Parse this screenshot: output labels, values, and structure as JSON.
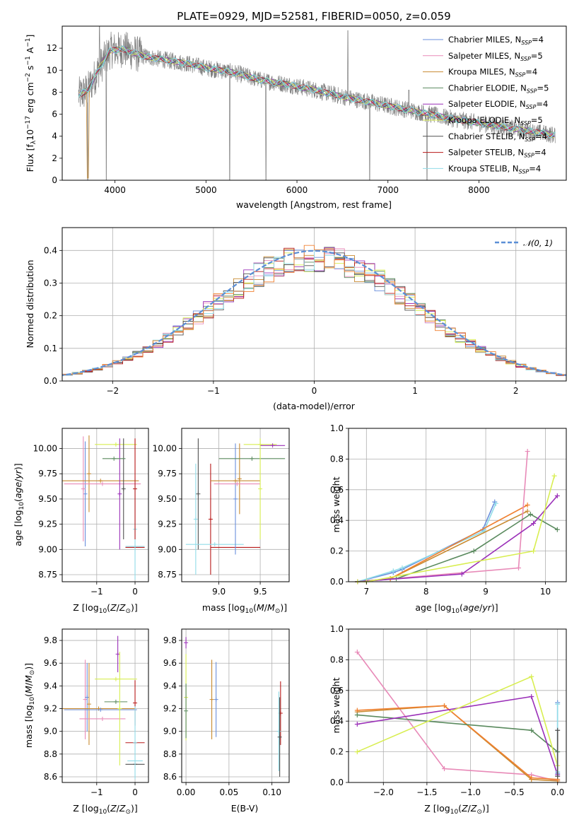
{
  "chart_data": [
    {
      "type": "line",
      "title": "PLATE=0929, MJD=52581, FIBERID=0050, z=0.059",
      "xlabel": "wavelength [Angstrom, rest frame]",
      "ylabel": "Flux [f_λ 10^-17 erg cm^-2 s^-1 A^-1]",
      "xlim": [
        3420,
        8960
      ],
      "ylim": [
        0,
        14
      ],
      "xticks": [
        4000,
        5000,
        6000,
        7000,
        8000
      ],
      "yticks": [
        0,
        2,
        4,
        6,
        8,
        10,
        12
      ],
      "grid": false,
      "legend": "top-right",
      "observed_color": "#808080",
      "model_color": "#7fd4dc",
      "observed_anchors": [
        [
          3600,
          7.7
        ],
        [
          3700,
          8.2
        ],
        [
          3850,
          10.5
        ],
        [
          3950,
          11.8
        ],
        [
          4100,
          11.9
        ],
        [
          4300,
          11.3
        ],
        [
          4500,
          11.0
        ],
        [
          4800,
          10.6
        ],
        [
          5000,
          10.2
        ],
        [
          5300,
          9.8
        ],
        [
          5600,
          9.1
        ],
        [
          5900,
          8.7
        ],
        [
          6200,
          8.2
        ],
        [
          6500,
          7.6
        ],
        [
          6800,
          7.1
        ],
        [
          7100,
          6.6
        ],
        [
          7400,
          6.1
        ],
        [
          7700,
          5.6
        ],
        [
          8000,
          5.2
        ],
        [
          8300,
          4.8
        ],
        [
          8600,
          4.4
        ],
        [
          8840,
          4.1
        ]
      ],
      "dips": [
        [
          3700,
          0
        ],
        [
          3905,
          0
        ],
        [
          5260,
          0
        ],
        [
          5660,
          0
        ],
        [
          6800,
          0
        ],
        [
          7430,
          0
        ]
      ],
      "spikes": [
        [
          3830,
          14
        ],
        [
          6560,
          13.6
        ],
        [
          7230,
          8.2
        ]
      ],
      "series": [
        {
          "name": "Chabrier MILES, N_SSP=4",
          "color": "#6a8fdc"
        },
        {
          "name": "Salpeter MILES, N_SSP=5",
          "color": "#e88ab8"
        },
        {
          "name": "Kroupa MILES, N_SSP=4",
          "color": "#c88a30"
        },
        {
          "name": "Chabrier ELODIE, N_SSP=5",
          "color": "#5a8a5e"
        },
        {
          "name": "Salpeter ELODIE, N_SSP=4",
          "color": "#9a2fb8"
        },
        {
          "name": "Kroupa ELODIE, N_SSP=5",
          "color": "#d8ee50"
        },
        {
          "name": "Chabrier STELIB, N_SSP=4",
          "color": "#505050"
        },
        {
          "name": "Salpeter STELIB, N_SSP=4",
          "color": "#b81818"
        },
        {
          "name": "Kroupa STELIB, N_SSP=4",
          "color": "#90dce8"
        }
      ]
    },
    {
      "type": "line",
      "xlabel": "(data-model)/error",
      "ylabel": "Normed distribution",
      "xlim": [
        -2.5,
        2.5
      ],
      "ylim": [
        0,
        0.47
      ],
      "xticks": [
        -2,
        -1,
        0,
        1,
        2
      ],
      "yticks": [
        0.0,
        0.1,
        0.2,
        0.3,
        0.4
      ],
      "grid": true,
      "legend": "top-right",
      "bin_width": 0.1,
      "reference": {
        "name": "𝒩(0, 1)",
        "color": "#5b8fd6"
      },
      "hist_colors": [
        "#6a8fdc",
        "#e88ab8",
        "#c88a30",
        "#5a8a5e",
        "#9a2fb8",
        "#d8ee50",
        "#505050",
        "#b81818",
        "#90dce8",
        "#f08030"
      ]
    },
    {
      "type": "scatter",
      "xlabel": "Z [log10(Z/Z⊙)]",
      "ylabel": "age [log10(age/yr)]",
      "xlim": [
        -1.9,
        0.35
      ],
      "ylim": [
        8.68,
        10.2
      ],
      "xticks": [
        -1,
        0
      ],
      "yticks": [
        8.75,
        9.0,
        9.25,
        9.5,
        9.75,
        10.0
      ],
      "grid": true,
      "points": [
        {
          "x": -1.3,
          "xerr": 0,
          "y": 9.55,
          "yerr": 0.52,
          "color": "#6a8fdc"
        },
        {
          "x": -1.35,
          "xerr": 0,
          "y": 9.6,
          "yerr": 0.52,
          "color": "#e88ab8"
        },
        {
          "x": -1.2,
          "xerr": 0,
          "y": 9.75,
          "yerr": 0.38,
          "color": "#c88a30"
        },
        {
          "x": -0.9,
          "xerr": 1.0,
          "y": 9.68,
          "yerr": 0,
          "color": "#c88a30"
        },
        {
          "x": -0.85,
          "xerr": 1.0,
          "y": 9.65,
          "yerr": 0,
          "color": "#e88ab8"
        },
        {
          "x": -0.5,
          "xerr": 0.55,
          "y": 10.04,
          "yerr": 0,
          "color": "#d8ee50"
        },
        {
          "x": -0.4,
          "xerr": 0,
          "y": 9.55,
          "yerr": 0.55,
          "color": "#9a2fb8"
        },
        {
          "x": -0.3,
          "xerr": 0,
          "y": 9.6,
          "yerr": 0.5,
          "color": "#505050"
        },
        {
          "x": -0.55,
          "xerr": 0.3,
          "y": 9.9,
          "yerr": 0,
          "color": "#5a8a5e"
        },
        {
          "x": 0.0,
          "xerr": 0.25,
          "y": 9.03,
          "yerr": 0,
          "color": "#90dce8"
        },
        {
          "x": 0.0,
          "xerr": 0.25,
          "y": 9.02,
          "yerr": 0,
          "color": "#b81818"
        },
        {
          "x": 0.0,
          "xerr": 0,
          "y": 9.2,
          "yerr": 0.5,
          "color": "#90dce8"
        },
        {
          "x": 0.0,
          "xerr": 0,
          "y": 9.6,
          "yerr": 0.5,
          "color": "#b81818"
        }
      ]
    },
    {
      "type": "scatter",
      "xlabel": "mass [log10(M/M⊙)]",
      "ylabel": "",
      "xlim": [
        8.55,
        9.85
      ],
      "ylim": [
        8.68,
        10.2
      ],
      "xticks": [
        9.0,
        9.5
      ],
      "yticks": [
        8.75,
        9.0,
        9.25,
        9.5,
        9.75,
        10.0
      ],
      "grid": true,
      "points": [
        {
          "x": 8.75,
          "xerr": 0,
          "y": 9.55,
          "yerr": 0.55,
          "color": "#505050"
        },
        {
          "x": 8.72,
          "xerr": 0,
          "y": 9.3,
          "yerr": 0.55,
          "color": "#90dce8"
        },
        {
          "x": 8.9,
          "xerr": 0,
          "y": 9.3,
          "yerr": 0.55,
          "color": "#b81818"
        },
        {
          "x": 8.95,
          "xerr": 0.35,
          "y": 9.05,
          "yerr": 0,
          "color": "#90dce8"
        },
        {
          "x": 9.2,
          "xerr": 0.3,
          "y": 9.02,
          "yerr": 0,
          "color": "#b81818"
        },
        {
          "x": 9.2,
          "xerr": 0,
          "y": 9.5,
          "yerr": 0.55,
          "color": "#6a8fdc"
        },
        {
          "x": 9.25,
          "xerr": 0,
          "y": 9.7,
          "yerr": 0.35,
          "color": "#c88a30"
        },
        {
          "x": 9.2,
          "xerr": 0.3,
          "y": 9.68,
          "yerr": 0,
          "color": "#c88a30"
        },
        {
          "x": 9.22,
          "xerr": 0.28,
          "y": 9.65,
          "yerr": 0,
          "color": "#e88ab8"
        },
        {
          "x": 9.5,
          "xerr": 0.2,
          "y": 10.04,
          "yerr": 0,
          "color": "#d8ee50"
        },
        {
          "x": 9.4,
          "xerr": 0.4,
          "y": 9.9,
          "yerr": 0,
          "color": "#5a8a5e"
        },
        {
          "x": 9.65,
          "xerr": 0.15,
          "y": 10.03,
          "yerr": 0,
          "color": "#9a2fb8"
        },
        {
          "x": 9.5,
          "xerr": 0,
          "y": 9.6,
          "yerr": 0.5,
          "color": "#d8ee50"
        }
      ]
    },
    {
      "type": "line",
      "xlabel": "age [log10(age/yr)]",
      "ylabel": "mass weight",
      "xlim": [
        6.7,
        10.35
      ],
      "ylim": [
        0,
        1
      ],
      "xticks": [
        7,
        8,
        9,
        10
      ],
      "yticks": [
        0.0,
        0.2,
        0.4,
        0.6,
        0.8,
        1.0
      ],
      "grid": true,
      "series": [
        {
          "color": "#6a8fdc",
          "x": [
            6.85,
            7.45,
            7.6,
            8.95,
            9.15
          ],
          "y": [
            0.0,
            0.06,
            0.08,
            0.34,
            0.52
          ]
        },
        {
          "color": "#90dce8",
          "x": [
            6.85,
            7.45,
            7.6,
            8.97,
            9.17
          ],
          "y": [
            0.0,
            0.07,
            0.09,
            0.33,
            0.51
          ]
        },
        {
          "color": "#c88a30",
          "x": [
            6.85,
            7.4,
            9.7
          ],
          "y": [
            0.0,
            0.02,
            0.46
          ]
        },
        {
          "color": "#f08030",
          "x": [
            6.85,
            7.4,
            9.7
          ],
          "y": [
            0.0,
            0.02,
            0.5
          ]
        },
        {
          "color": "#e88ab8",
          "x": [
            6.85,
            9.55,
            9.7
          ],
          "y": [
            0.0,
            0.09,
            0.85
          ]
        },
        {
          "color": "#5a8a5e",
          "x": [
            6.85,
            7.5,
            8.8,
            9.75,
            10.2
          ],
          "y": [
            0.0,
            0.02,
            0.2,
            0.44,
            0.34
          ]
        },
        {
          "color": "#9a2fb8",
          "x": [
            6.85,
            8.6,
            9.8,
            10.2
          ],
          "y": [
            0.0,
            0.05,
            0.38,
            0.56
          ]
        },
        {
          "color": "#d8ee50",
          "x": [
            6.85,
            7.0,
            9.8,
            10.15
          ],
          "y": [
            0.0,
            0.0,
            0.2,
            0.69
          ]
        }
      ]
    },
    {
      "type": "scatter",
      "xlabel": "Z [log10(Z/Z⊙)]",
      "ylabel": "mass [log10(M/M⊙)]",
      "xlim": [
        -1.9,
        0.35
      ],
      "ylim": [
        8.55,
        9.9
      ],
      "xticks": [
        -1,
        0
      ],
      "yticks": [
        8.6,
        8.8,
        9.0,
        9.2,
        9.4,
        9.6,
        9.8
      ],
      "grid": true,
      "points": [
        {
          "x": -1.3,
          "xerr": 0,
          "y": 9.28,
          "yerr": 0.35,
          "color": "#e88ab8"
        },
        {
          "x": -1.25,
          "xerr": 0,
          "y": 9.3,
          "yerr": 0.3,
          "color": "#6a8fdc"
        },
        {
          "x": -1.2,
          "xerr": 0,
          "y": 9.24,
          "yerr": 0.36,
          "color": "#c88a30"
        },
        {
          "x": -0.95,
          "xerr": 0.95,
          "y": 9.2,
          "yerr": 0,
          "color": "#c88a30"
        },
        {
          "x": -0.9,
          "xerr": 0.95,
          "y": 9.19,
          "yerr": 0,
          "color": "#6a8fdc"
        },
        {
          "x": -0.85,
          "xerr": 0.6,
          "y": 9.11,
          "yerr": 0,
          "color": "#e88ab8"
        },
        {
          "x": -0.5,
          "xerr": 0.3,
          "y": 9.26,
          "yerr": 0,
          "color": "#5a8a5e"
        },
        {
          "x": -0.5,
          "xerr": 0.55,
          "y": 9.46,
          "yerr": 0,
          "color": "#d8ee50"
        },
        {
          "x": -0.45,
          "xerr": 0,
          "y": 9.68,
          "yerr": 0.16,
          "color": "#9a2fb8"
        },
        {
          "x": -0.4,
          "xerr": 0,
          "y": 9.2,
          "yerr": 0.5,
          "color": "#d8ee50"
        },
        {
          "x": 0.0,
          "xerr": 0.25,
          "y": 8.9,
          "yerr": 0,
          "color": "#b81818"
        },
        {
          "x": 0.0,
          "xerr": 0.2,
          "y": 8.74,
          "yerr": 0,
          "color": "#90dce8"
        },
        {
          "x": 0.0,
          "xerr": 0.25,
          "y": 8.71,
          "yerr": 0,
          "color": "#505050"
        },
        {
          "x": 0.0,
          "xerr": 0,
          "y": 9.25,
          "yerr": 0.2,
          "color": "#b81818"
        },
        {
          "x": 0.0,
          "xerr": 0,
          "y": 8.9,
          "yerr": 0.32,
          "color": "#90dce8"
        }
      ]
    },
    {
      "type": "scatter",
      "xlabel": "E(B-V)",
      "ylabel": "",
      "xlim": [
        -0.005,
        0.12
      ],
      "ylim": [
        8.55,
        9.9
      ],
      "xticks": [
        0.0,
        0.05,
        0.1
      ],
      "xticklabels": [
        "0.00",
        "0.05",
        "0.10"
      ],
      "yticks": [
        8.6,
        8.8,
        9.0,
        9.2,
        9.4,
        9.6,
        9.8
      ],
      "grid": true,
      "points": [
        {
          "x": 0.0,
          "xerr": 0,
          "y": 9.78,
          "yerr": 0.05,
          "color": "#9a2fb8"
        },
        {
          "x": 0.0,
          "xerr": 0,
          "y": 9.3,
          "yerr": 0.38,
          "color": "#d8ee50"
        },
        {
          "x": 0.0,
          "xerr": 0,
          "y": 9.18,
          "yerr": 0.24,
          "color": "#5a8a5e"
        },
        {
          "x": 0.03,
          "xerr": 0,
          "y": 9.28,
          "yerr": 0.35,
          "color": "#c88a30"
        },
        {
          "x": 0.035,
          "xerr": 0,
          "y": 9.28,
          "yerr": 0.33,
          "color": "#6a8fdc"
        },
        {
          "x": 0.11,
          "xerr": 0,
          "y": 9.16,
          "yerr": 0.28,
          "color": "#b81818"
        },
        {
          "x": 0.108,
          "xerr": 0,
          "y": 9.0,
          "yerr": 0.35,
          "color": "#90dce8"
        },
        {
          "x": 0.109,
          "xerr": 0,
          "y": 8.95,
          "yerr": 0.35,
          "color": "#505050"
        }
      ]
    },
    {
      "type": "line",
      "xlabel": "Z [log10(Z/Z⊙)]",
      "ylabel": "mass weight",
      "xlim": [
        -2.4,
        0.1
      ],
      "ylim": [
        0,
        1
      ],
      "xticks": [
        -2.0,
        -1.5,
        -1.0,
        -0.5,
        0.0
      ],
      "xticklabels": [
        "−2.0",
        "−1.5",
        "−1.0",
        "−0.5",
        "0.0"
      ],
      "yticks": [
        0.0,
        0.2,
        0.4,
        0.6,
        0.8,
        1.0
      ],
      "grid": true,
      "series": [
        {
          "color": "#e88ab8",
          "x": [
            -2.3,
            -1.3,
            -0.3,
            0.0
          ],
          "y": [
            0.85,
            0.09,
            0.05,
            0.01
          ]
        },
        {
          "color": "#c88a30",
          "x": [
            -2.3,
            -1.3,
            -0.3,
            0.0
          ],
          "y": [
            0.46,
            0.5,
            0.02,
            0.01
          ]
        },
        {
          "color": "#f08030",
          "x": [
            -2.3,
            -1.3,
            -0.3,
            0.0
          ],
          "y": [
            0.47,
            0.5,
            0.03,
            0.02
          ]
        },
        {
          "color": "#5a8a5e",
          "x": [
            -2.3,
            -0.3,
            0.0
          ],
          "y": [
            0.44,
            0.34,
            0.2
          ]
        },
        {
          "color": "#9a2fb8",
          "x": [
            -2.3,
            -0.3,
            0.0
          ],
          "y": [
            0.38,
            0.56,
            0.05
          ]
        },
        {
          "color": "#d8ee50",
          "x": [
            -2.3,
            -0.3,
            0.0
          ],
          "y": [
            0.2,
            0.69,
            0.11
          ]
        },
        {
          "color": "#6a8fdc",
          "x": [
            0.0,
            0.0
          ],
          "y": [
            0.06,
            0.52
          ]
        },
        {
          "color": "#90dce8",
          "x": [
            0.0,
            0.0
          ],
          "y": [
            0.07,
            0.51
          ]
        },
        {
          "color": "#505050",
          "x": [
            0.0,
            0.0
          ],
          "y": [
            0.04,
            0.34
          ]
        }
      ]
    }
  ]
}
